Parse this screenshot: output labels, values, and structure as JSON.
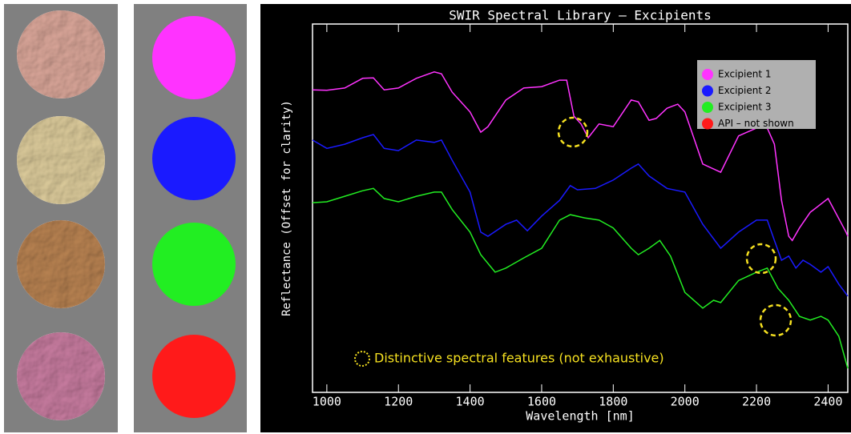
{
  "chart_data": {
    "type": "line",
    "title": "SWIR Spectral Library –  Excipients",
    "xlabel": "Wavelength [nm]",
    "ylabel": "Reflectance (Offset for clarity)",
    "xlim": [
      960,
      2455
    ],
    "ylim": [
      0,
      8
    ],
    "xticks": [
      1000,
      1200,
      1400,
      1600,
      1800,
      2000,
      2200,
      2400
    ],
    "legend": "upper right",
    "annotation": "Distinctive spectral features (not exhaustive)",
    "series": [
      {
        "name": "Excipient 1",
        "color": "#ff33ff",
        "x": [
          960,
          1000,
          1050,
          1100,
          1130,
          1160,
          1200,
          1250,
          1300,
          1320,
          1350,
          1400,
          1430,
          1450,
          1500,
          1550,
          1600,
          1650,
          1670,
          1690,
          1710,
          1730,
          1760,
          1800,
          1850,
          1870,
          1900,
          1920,
          1950,
          1980,
          2000,
          2050,
          2100,
          2150,
          2200,
          2230,
          2250,
          2270,
          2290,
          2300,
          2320,
          2350,
          2400,
          2450,
          2455
        ],
        "values": [
          6.57,
          6.56,
          6.61,
          6.82,
          6.83,
          6.57,
          6.61,
          6.82,
          6.96,
          6.92,
          6.52,
          6.09,
          5.65,
          5.77,
          6.35,
          6.61,
          6.64,
          6.78,
          6.78,
          6.0,
          5.83,
          5.53,
          5.83,
          5.77,
          6.35,
          6.31,
          5.91,
          5.95,
          6.17,
          6.26,
          6.09,
          4.96,
          4.78,
          5.57,
          5.74,
          5.74,
          5.39,
          4.17,
          3.39,
          3.3,
          3.57,
          3.91,
          4.21,
          3.48,
          3.39
        ]
      },
      {
        "name": "Excipient 2",
        "color": "#1a1aff",
        "x": [
          960,
          1000,
          1050,
          1100,
          1130,
          1160,
          1200,
          1250,
          1300,
          1320,
          1350,
          1400,
          1430,
          1450,
          1500,
          1530,
          1560,
          1600,
          1650,
          1680,
          1700,
          1750,
          1800,
          1850,
          1870,
          1900,
          1950,
          2000,
          2050,
          2100,
          2150,
          2200,
          2230,
          2250,
          2270,
          2290,
          2310,
          2330,
          2350,
          2380,
          2400,
          2430,
          2455
        ],
        "values": [
          5.48,
          5.3,
          5.39,
          5.53,
          5.6,
          5.3,
          5.25,
          5.48,
          5.43,
          5.48,
          5.04,
          4.35,
          3.48,
          3.39,
          3.65,
          3.74,
          3.51,
          3.83,
          4.17,
          4.49,
          4.4,
          4.43,
          4.61,
          4.87,
          4.96,
          4.7,
          4.43,
          4.35,
          3.65,
          3.13,
          3.48,
          3.74,
          3.74,
          3.3,
          2.87,
          2.96,
          2.7,
          2.87,
          2.78,
          2.61,
          2.73,
          2.35,
          2.09
        ]
      },
      {
        "name": "Excipient 3",
        "color": "#22ee22",
        "x": [
          960,
          1000,
          1050,
          1100,
          1130,
          1160,
          1200,
          1250,
          1300,
          1320,
          1350,
          1400,
          1430,
          1470,
          1500,
          1550,
          1600,
          1650,
          1680,
          1720,
          1760,
          1800,
          1850,
          1870,
          1900,
          1930,
          1960,
          2000,
          2050,
          2080,
          2100,
          2150,
          2200,
          2230,
          2260,
          2290,
          2320,
          2350,
          2380,
          2400,
          2430,
          2455
        ],
        "values": [
          4.12,
          4.14,
          4.26,
          4.38,
          4.43,
          4.21,
          4.14,
          4.26,
          4.35,
          4.35,
          3.97,
          3.48,
          2.99,
          2.61,
          2.7,
          2.92,
          3.13,
          3.74,
          3.86,
          3.79,
          3.74,
          3.57,
          3.13,
          2.99,
          3.13,
          3.3,
          2.96,
          2.17,
          1.83,
          2.0,
          1.95,
          2.43,
          2.61,
          2.7,
          2.26,
          2.0,
          1.65,
          1.57,
          1.65,
          1.57,
          1.22,
          0.52
        ]
      },
      {
        "name": "API – not shown",
        "color": "#ff1a1a",
        "x": [],
        "values": []
      }
    ]
  }
}
